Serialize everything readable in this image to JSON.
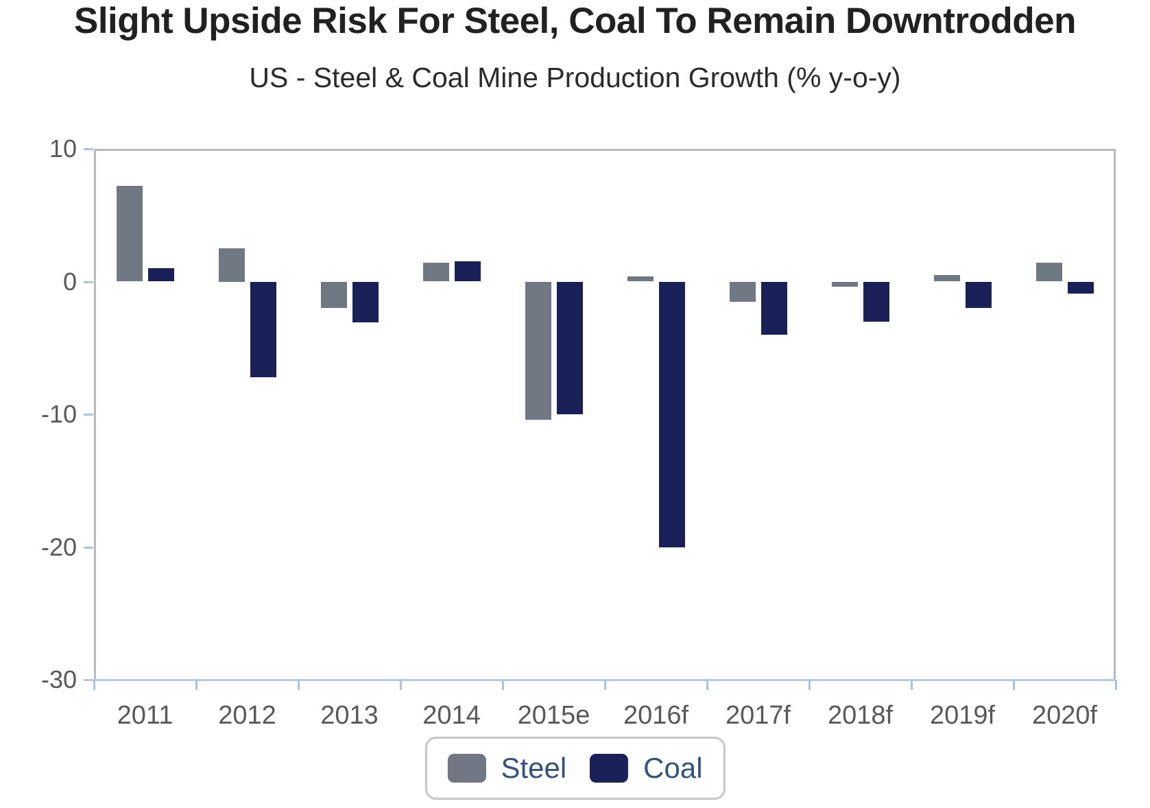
{
  "title": "Slight Upside Risk For Steel, Coal To Remain Downtrodden",
  "subtitle": "US - Steel & Coal Mine Production Growth (% y-o-y)",
  "colors": {
    "steel": "#6f7883",
    "coal": "#1a2159",
    "plot_border_gray": "#b9b9bc",
    "axis_blue": "#b6cbe1",
    "tick_blue": "#a9c4de",
    "tick_label": "#58585c",
    "legend_text": "#31517e"
  },
  "chart_data": {
    "type": "bar",
    "title": "Slight Upside Risk For Steel, Coal To Remain Downtrodden",
    "subtitle": "US - Steel & Coal Mine Production Growth (% y-o-y)",
    "categories": [
      "2011",
      "2012",
      "2013",
      "2014",
      "2015e",
      "2016f",
      "2017f",
      "2018f",
      "2019f",
      "2020f"
    ],
    "series": [
      {
        "name": "Steel",
        "color_key": "steel",
        "values": [
          7.2,
          2.5,
          -2.0,
          1.4,
          -10.4,
          0.4,
          -1.5,
          -0.4,
          0.5,
          1.4
        ]
      },
      {
        "name": "Coal",
        "color_key": "coal",
        "values": [
          1.0,
          -7.2,
          -3.1,
          1.5,
          -10.0,
          -20.0,
          -4.0,
          -3.0,
          -2.0,
          -0.9
        ]
      }
    ],
    "xlabel": "",
    "ylabel": "",
    "ylim": [
      -30,
      10
    ],
    "yticks": [
      10,
      0,
      -10,
      -20,
      -30
    ],
    "grid": false,
    "legend_position": "bottom"
  },
  "legend": {
    "items": [
      {
        "label": "Steel",
        "color_key": "steel"
      },
      {
        "label": "Coal",
        "color_key": "coal"
      }
    ]
  }
}
